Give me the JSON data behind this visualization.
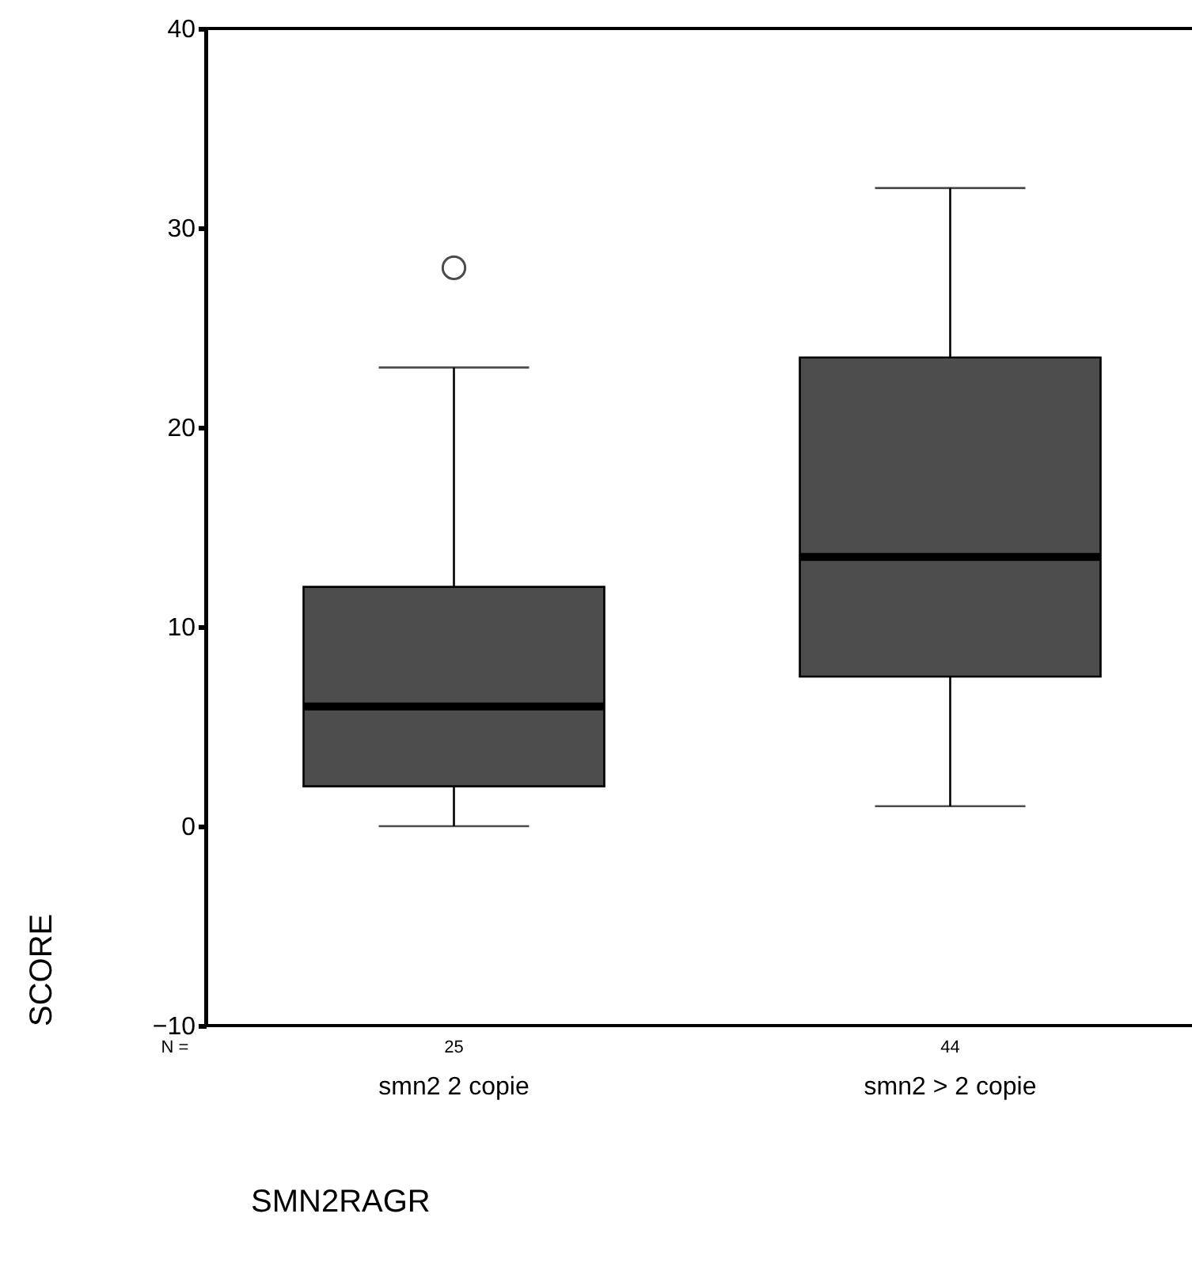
{
  "chart_data": {
    "type": "box",
    "xlabel": "SMN2RAGR",
    "ylabel": "SCORE",
    "categories": [
      "smn2 2 copie",
      "smn2 > 2 copie"
    ],
    "boxes": [
      {
        "low": 0,
        "q1": 2,
        "median": 6,
        "q3": 12,
        "high": 23,
        "outliers": [
          28
        ]
      },
      {
        "low": 1,
        "q1": 7.5,
        "median": 13.5,
        "q3": 23.5,
        "high": 32
      }
    ],
    "color": "#4d4d4d",
    "ylim": [
      -10,
      40
    ],
    "yticks": [
      -10,
      0,
      10,
      20,
      30,
      40
    ],
    "grid": false,
    "annotations": [
      "N =",
      "25",
      "44"
    ]
  }
}
